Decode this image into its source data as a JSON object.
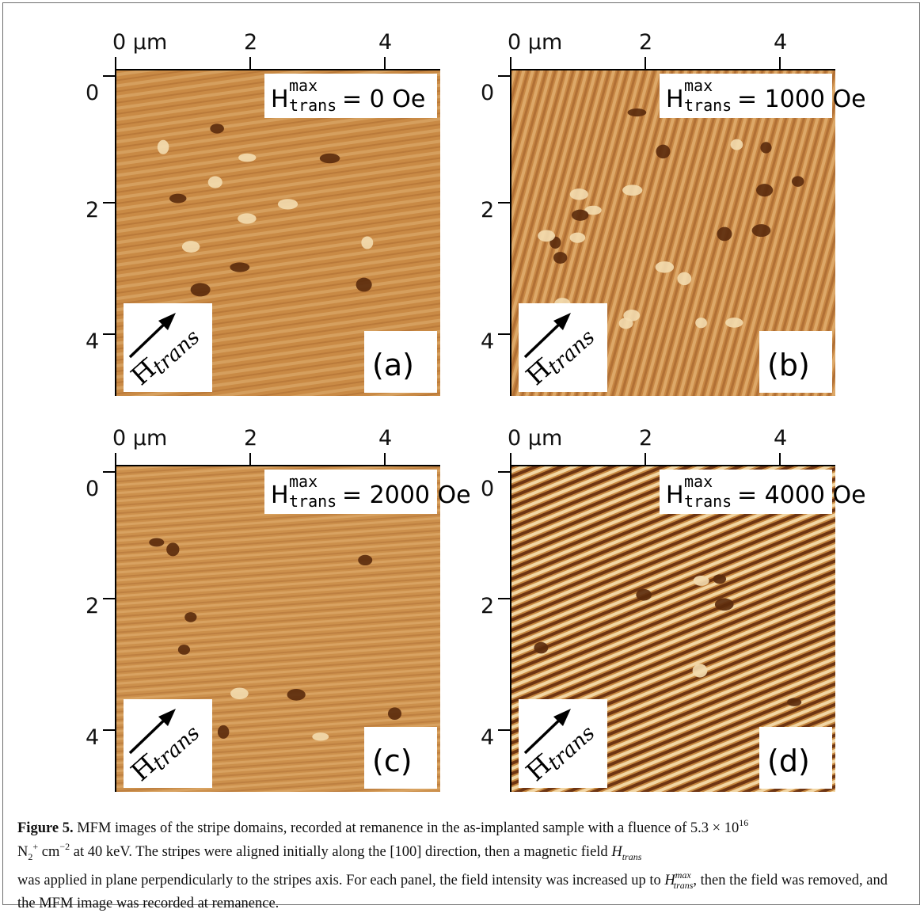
{
  "axis": {
    "x_ticks": [
      "0 µm",
      "2",
      "4"
    ],
    "y_ticks": [
      "0",
      "2",
      "4"
    ]
  },
  "panels": [
    {
      "id": "a",
      "letter": "(a)",
      "field_value": "= 0 Oe"
    },
    {
      "id": "b",
      "letter": "(b)",
      "field_value": "= 1000 Oe"
    },
    {
      "id": "c",
      "letter": "(c)",
      "field_value": "= 2000 Oe"
    },
    {
      "id": "d",
      "letter": "(d)",
      "field_value": "= 4000 Oe"
    }
  ],
  "field_label": {
    "H": "H",
    "sup": "max",
    "sub": "trans"
  },
  "arrow_label": {
    "H": "H",
    "sub": "trans"
  },
  "colors": {
    "mfm_base": "#c98a45",
    "mfm_light": "#f3dcaf",
    "mfm_dark": "#5a2a0c"
  },
  "caption": {
    "label": "Figure 5.",
    "t1": "MFM images of the stripe domains, recorded at remanence in the as-implanted sample with a fluence of 5.3 × 10",
    "exp16": "16",
    "t2": "N",
    "n_sub": "2",
    "n_sup": "+",
    "t3": "cm",
    "exp_m2": "−2",
    "t4": "at 40 keV. The stripes were aligned initially along the [100] direction, then a magnetic field",
    "h_trans": "H",
    "h_trans_sub": "trans",
    "t5": "was applied in plane perpendicularly to the stripes axis. For each panel, the field intensity was increased up to",
    "h_max": "H",
    "h_max_sup": "max",
    "h_max_sub": "trans",
    "t6": ", then the field was removed, and the MFM image was recorded at remanence."
  }
}
